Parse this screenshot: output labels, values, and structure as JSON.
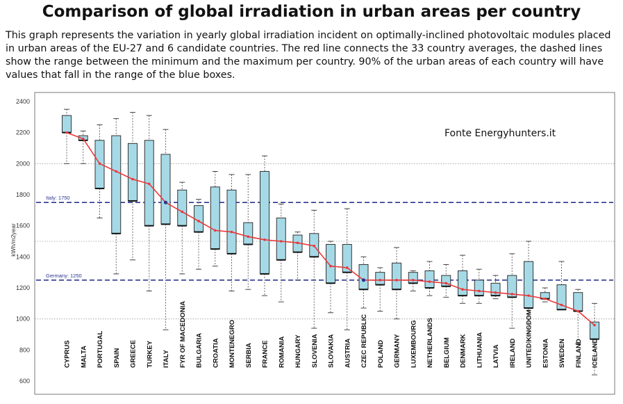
{
  "title": "Comparison of global irradiation in urban areas per country",
  "description": "This graph represents the variation in yearly global irradiation incident on optimally-inclined photovoltaic modules placed in urban areas of the EU-27 and 6 candidate countries. The red line connects the 33 country averages, the dashed lines show the range between the minimum and the maximum per country. 90% of the urban areas of each country will have values that fall in the range of the blue boxes.",
  "source_note": "Fonte Energyhunters.it",
  "colors": {
    "box": "#a6d9e6",
    "mean_line": "#e8393b",
    "ref_line": "#2b3590",
    "grid": "#999999"
  },
  "chart_data": {
    "type": "box",
    "ylabel": "kWh/m2year",
    "ylim": [
      600,
      2400
    ],
    "yticks": [
      600,
      800,
      1000,
      1200,
      1400,
      1600,
      1800,
      2000,
      2200,
      2400
    ],
    "grid": "horizontal dotted at 1000, 1500, 2000",
    "reference_lines": [
      {
        "label": "Italy: 1750",
        "value": 1750
      },
      {
        "label": "Germany: 1250",
        "value": 1250
      }
    ],
    "categories": [
      "CYPRUS",
      "MALTA",
      "PORTUGAL",
      "SPAIN",
      "GREECE",
      "TURKEY",
      "ITALY",
      "FYR OF MACEDONIA",
      "BULGARIA",
      "CROATIA",
      "MONTENEGRO",
      "SERBIA",
      "FRANCE",
      "ROMANIA",
      "HUNGARY",
      "SLOVENIA",
      "SLOVAKIA",
      "AUSTRIA",
      "CZEC REPUBLIC",
      "POLAND",
      "GERMANY",
      "LUXEMBOURG",
      "NETHERLANDS",
      "BELGIUM",
      "DENMARK",
      "LITHUANIA",
      "LATVIA",
      "IRELAND",
      "UNITED KINGDOM",
      "ESTONIA",
      "SWEDEN",
      "FINLAND",
      "ICELAND"
    ],
    "min": [
      2000,
      2000,
      1650,
      1290,
      1380,
      1180,
      930,
      1290,
      1320,
      1340,
      1180,
      1190,
      1150,
      1110,
      1250,
      940,
      1040,
      930,
      1070,
      1050,
      1000,
      1180,
      1150,
      1140,
      1100,
      1100,
      1130,
      940,
      850,
      1110,
      1060,
      840,
      640
    ],
    "box_low": [
      2200,
      2150,
      1840,
      1550,
      1760,
      1600,
      1610,
      1600,
      1560,
      1450,
      1420,
      1480,
      1290,
      1380,
      1430,
      1400,
      1230,
      1300,
      1190,
      1220,
      1190,
      1230,
      1200,
      1210,
      1150,
      1150,
      1150,
      1140,
      1070,
      1130,
      1060,
      1050,
      870
    ],
    "box_high": [
      2310,
      2180,
      2150,
      2180,
      2130,
      2150,
      2060,
      1830,
      1730,
      1850,
      1830,
      1620,
      1950,
      1650,
      1540,
      1550,
      1480,
      1480,
      1350,
      1300,
      1360,
      1300,
      1310,
      1280,
      1310,
      1250,
      1230,
      1280,
      1370,
      1170,
      1220,
      1170,
      980
    ],
    "max": [
      2350,
      2210,
      2250,
      2290,
      2330,
      2310,
      2220,
      1880,
      1770,
      1950,
      1930,
      1930,
      2050,
      1740,
      1560,
      1700,
      1500,
      1710,
      1400,
      1330,
      1460,
      1310,
      1370,
      1350,
      1410,
      1320,
      1280,
      1420,
      1500,
      1200,
      1370,
      1190,
      1100
    ],
    "mean": [
      2200,
      2160,
      2000,
      1950,
      1900,
      1870,
      1750,
      1690,
      1630,
      1570,
      1560,
      1530,
      1510,
      1500,
      1490,
      1470,
      1340,
      1330,
      1250,
      1250,
      1250,
      1250,
      1240,
      1230,
      1190,
      1180,
      1170,
      1160,
      1150,
      1130,
      1090,
      1050,
      960
    ]
  }
}
